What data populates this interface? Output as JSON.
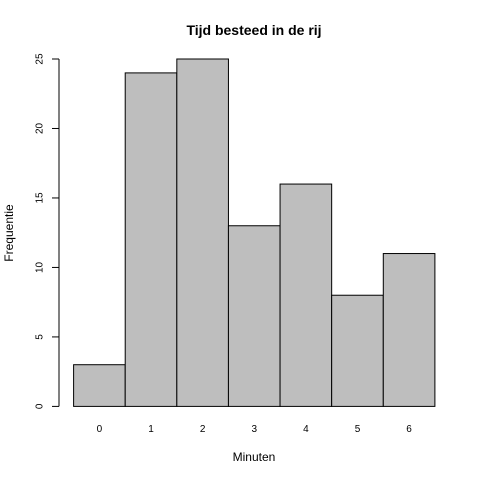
{
  "chart_data": {
    "type": "bar",
    "title": "Tijd besteed in de rij",
    "xlabel": "Minuten",
    "ylabel": "Frequentie",
    "categories": [
      "0",
      "1",
      "2",
      "3",
      "4",
      "5",
      "6"
    ],
    "values": [
      3,
      24,
      25,
      13,
      16,
      8,
      11
    ],
    "bin_edges": [
      -0.5,
      0.5,
      1.5,
      2.5,
      3.5,
      4.5,
      5.5,
      6.5
    ],
    "xlim": [
      -0.5,
      6.5
    ],
    "ylim": [
      0,
      25
    ],
    "yticks": [
      "0",
      "5",
      "10",
      "15",
      "20",
      "25"
    ],
    "grid": false,
    "legend": "none",
    "colors": {
      "bar_fill": "#bebebe",
      "bar_stroke": "#000000",
      "axis": "#000000",
      "background": "#ffffff"
    }
  }
}
